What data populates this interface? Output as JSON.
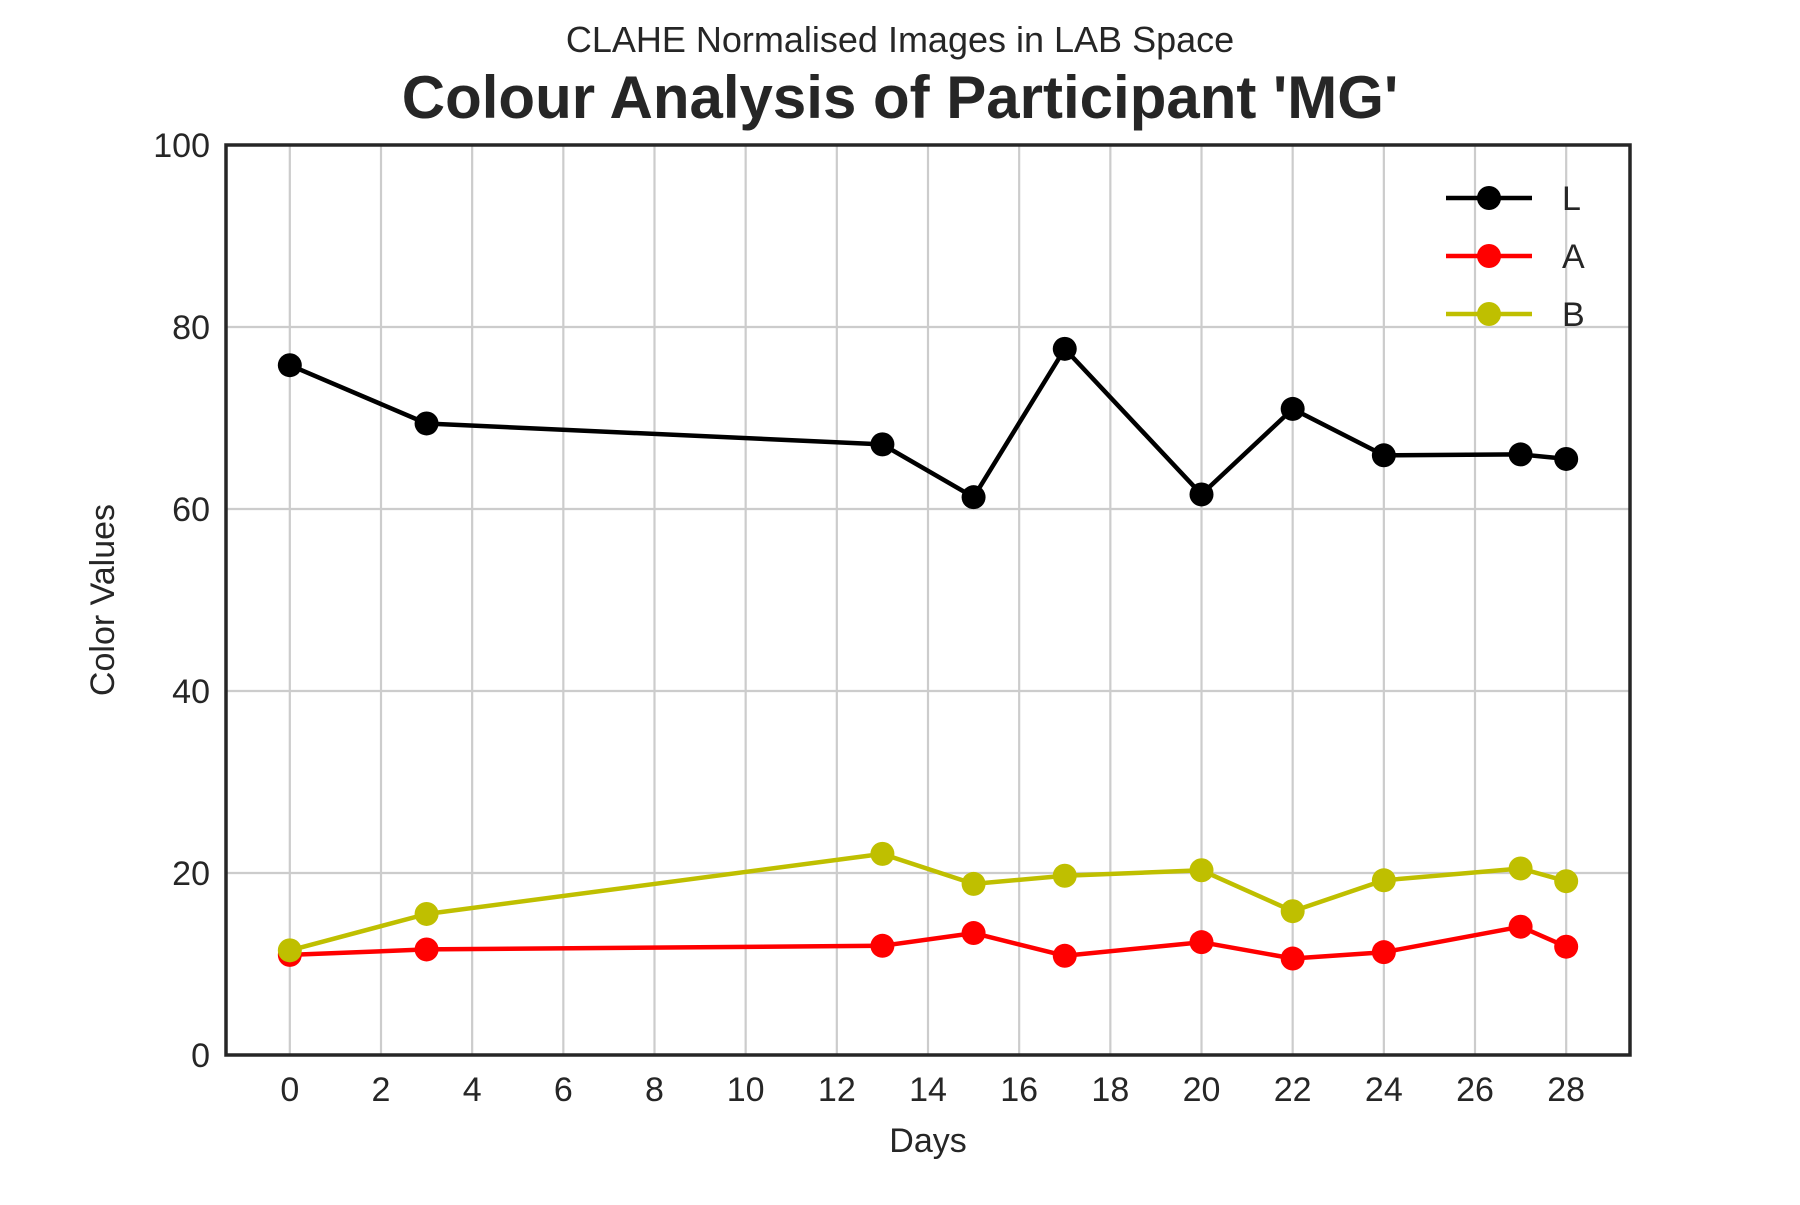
{
  "chart_data": {
    "type": "line",
    "supertitle": "CLAHE Normalised Images in LAB Space",
    "title": "Colour Analysis of Participant 'MG'",
    "xlabel": "Days",
    "ylabel": "Color Values",
    "xlim": [
      -1.4,
      29.4
    ],
    "ylim": [
      0,
      100
    ],
    "xticks": [
      0,
      2,
      4,
      6,
      8,
      10,
      12,
      14,
      16,
      18,
      20,
      22,
      24,
      26,
      28
    ],
    "yticks": [
      0,
      20,
      40,
      60,
      80,
      100
    ],
    "grid": true,
    "legend_position": "top-right",
    "x": [
      0,
      3,
      13,
      15,
      17,
      20,
      22,
      24,
      27,
      28
    ],
    "series": [
      {
        "name": "L",
        "color": "#000000",
        "values": [
          75.8,
          69.4,
          67.1,
          61.3,
          77.6,
          61.6,
          71.0,
          65.9,
          66.0,
          65.5
        ]
      },
      {
        "name": "A",
        "color": "#ff0000",
        "values": [
          11.0,
          11.6,
          12.0,
          13.4,
          10.9,
          12.4,
          10.6,
          11.3,
          14.1,
          11.9
        ]
      },
      {
        "name": "B",
        "color": "#bfbf00",
        "values": [
          11.5,
          15.5,
          22.1,
          18.8,
          19.7,
          20.3,
          15.8,
          19.2,
          20.5,
          19.1
        ]
      }
    ]
  }
}
